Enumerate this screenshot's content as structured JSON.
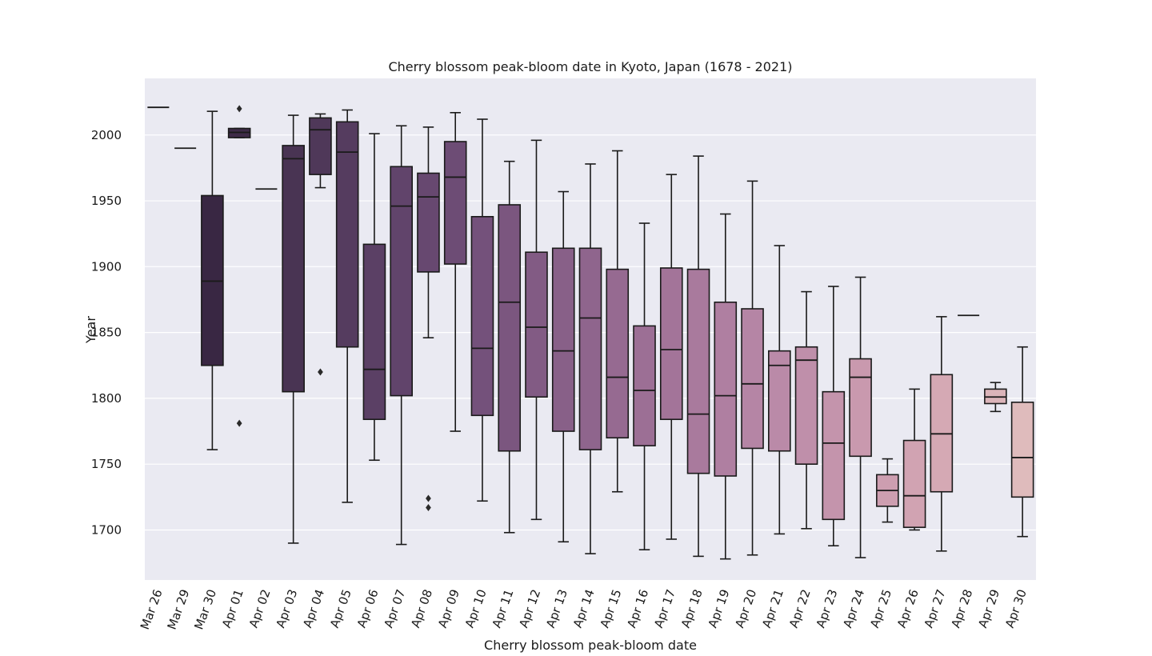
{
  "chart_data": {
    "type": "box",
    "title": "Cherry blossom peak-bloom date in Kyoto, Japan (1678 - 2021)",
    "xlabel": "Cherry blossom peak-bloom date",
    "ylabel": "Year",
    "ylim": [
      1662,
      2043
    ],
    "yticks": [
      1700,
      1750,
      1800,
      1850,
      1900,
      1950,
      2000
    ],
    "grid": true,
    "categories": [
      "Mar 26",
      "Mar 29",
      "Mar 30",
      "Apr 01",
      "Apr 02",
      "Apr 03",
      "Apr 04",
      "Apr 05",
      "Apr 06",
      "Apr 07",
      "Apr 08",
      "Apr 09",
      "Apr 10",
      "Apr 11",
      "Apr 12",
      "Apr 13",
      "Apr 14",
      "Apr 15",
      "Apr 16",
      "Apr 17",
      "Apr 18",
      "Apr 19",
      "Apr 20",
      "Apr 21",
      "Apr 22",
      "Apr 23",
      "Apr 24",
      "Apr 25",
      "Apr 26",
      "Apr 27",
      "Apr 28",
      "Apr 29",
      "Apr 30"
    ],
    "boxes": [
      {
        "min": 2021,
        "q1": 2021,
        "median": 2021,
        "q3": 2021,
        "max": 2021,
        "outliers": [],
        "color": "#2e1e3b"
      },
      {
        "min": 1990,
        "q1": 1990,
        "median": 1990,
        "q3": 1990,
        "max": 1990,
        "outliers": [],
        "color": "#33213f"
      },
      {
        "min": 1761,
        "q1": 1825,
        "median": 1889,
        "q3": 1954,
        "max": 2018,
        "outliers": [],
        "color": "#392743"
      },
      {
        "min": 1998,
        "q1": 1998,
        "median": 2002,
        "q3": 2005,
        "max": 2005,
        "outliers": [
          2020,
          1781
        ],
        "color": "#3e2b48"
      },
      {
        "min": 1959,
        "q1": 1959,
        "median": 1959,
        "q3": 1959,
        "max": 1959,
        "outliers": [],
        "color": "#43304e"
      },
      {
        "min": 1690,
        "q1": 1805,
        "median": 1982,
        "q3": 1992,
        "max": 2015,
        "outliers": [],
        "color": "#493453"
      },
      {
        "min": 1960,
        "q1": 1970,
        "median": 2004,
        "q3": 2013,
        "max": 2016,
        "outliers": [
          1820
        ],
        "color": "#4f3859"
      },
      {
        "min": 1721,
        "q1": 1839,
        "median": 1987,
        "q3": 2010,
        "max": 2019,
        "outliers": [],
        "color": "#553c5f"
      },
      {
        "min": 1753,
        "q1": 1784,
        "median": 1822,
        "q3": 1917,
        "max": 2001,
        "outliers": [],
        "color": "#5b4065"
      },
      {
        "min": 1689,
        "q1": 1802,
        "median": 1946,
        "q3": 1976,
        "max": 2007,
        "outliers": [],
        "color": "#61446b"
      },
      {
        "min": 1846,
        "q1": 1896,
        "median": 1953,
        "q3": 1971,
        "max": 2006,
        "outliers": [
          1724,
          1717
        ],
        "color": "#674870"
      },
      {
        "min": 1775,
        "q1": 1902,
        "median": 1968,
        "q3": 1995,
        "max": 2017,
        "outliers": [],
        "color": "#6d4c75"
      },
      {
        "min": 1722,
        "q1": 1787,
        "median": 1838,
        "q3": 1938,
        "max": 2012,
        "outliers": [],
        "color": "#74517b"
      },
      {
        "min": 1698,
        "q1": 1760,
        "median": 1873,
        "q3": 1947,
        "max": 1980,
        "outliers": [],
        "color": "#7b567f"
      },
      {
        "min": 1708,
        "q1": 1801,
        "median": 1854,
        "q3": 1911,
        "max": 1996,
        "outliers": [],
        "color": "#825b84"
      },
      {
        "min": 1691,
        "q1": 1775,
        "median": 1836,
        "q3": 1914,
        "max": 1957,
        "outliers": [],
        "color": "#886088"
      },
      {
        "min": 1682,
        "q1": 1761,
        "median": 1861,
        "q3": 1914,
        "max": 1978,
        "outliers": [],
        "color": "#8f658d"
      },
      {
        "min": 1729,
        "q1": 1770,
        "median": 1816,
        "q3": 1898,
        "max": 1988,
        "outliers": [],
        "color": "#966a91"
      },
      {
        "min": 1685,
        "q1": 1764,
        "median": 1806,
        "q3": 1855,
        "max": 1933,
        "outliers": [],
        "color": "#9c6f95"
      },
      {
        "min": 1693,
        "q1": 1784,
        "median": 1837,
        "q3": 1899,
        "max": 1970,
        "outliers": [],
        "color": "#a37499"
      },
      {
        "min": 1680,
        "q1": 1743,
        "median": 1788,
        "q3": 1898,
        "max": 1984,
        "outliers": [],
        "color": "#a97a9d"
      },
      {
        "min": 1678,
        "q1": 1741,
        "median": 1802,
        "q3": 1873,
        "max": 1940,
        "outliers": [],
        "color": "#af7fa1"
      },
      {
        "min": 1681,
        "q1": 1762,
        "median": 1811,
        "q3": 1868,
        "max": 1965,
        "outliers": [],
        "color": "#b585a5"
      },
      {
        "min": 1697,
        "q1": 1760,
        "median": 1825,
        "q3": 1836,
        "max": 1916,
        "outliers": [],
        "color": "#ba8aa8"
      },
      {
        "min": 1701,
        "q1": 1750,
        "median": 1829,
        "q3": 1839,
        "max": 1881,
        "outliers": [],
        "color": "#bf8faa"
      },
      {
        "min": 1688,
        "q1": 1708,
        "median": 1766,
        "q3": 1805,
        "max": 1885,
        "outliers": [],
        "color": "#c494ac"
      },
      {
        "min": 1679,
        "q1": 1756,
        "median": 1816,
        "q3": 1830,
        "max": 1892,
        "outliers": [],
        "color": "#c999ae"
      },
      {
        "min": 1706,
        "q1": 1718,
        "median": 1730,
        "q3": 1742,
        "max": 1754,
        "outliers": [],
        "color": "#cd9eb0"
      },
      {
        "min": 1700,
        "q1": 1702,
        "median": 1726,
        "q3": 1768,
        "max": 1807,
        "outliers": [],
        "color": "#d1a3b2"
      },
      {
        "min": 1684,
        "q1": 1729,
        "median": 1773,
        "q3": 1818,
        "max": 1862,
        "outliers": [],
        "color": "#d5a9b4"
      },
      {
        "min": 1863,
        "q1": 1863,
        "median": 1863,
        "q3": 1863,
        "max": 1863,
        "outliers": [],
        "color": "#d8aeb6"
      },
      {
        "min": 1790,
        "q1": 1796,
        "median": 1801,
        "q3": 1807,
        "max": 1812,
        "outliers": [],
        "color": "#dbb4b9"
      },
      {
        "min": 1695,
        "q1": 1725,
        "median": 1755,
        "q3": 1797,
        "max": 1839,
        "outliers": [],
        "color": "#dfbbbc"
      }
    ],
    "colors": {
      "plot_background": "#eaeaf2",
      "grid": "#ffffff",
      "line": "#1a1a1a"
    }
  }
}
